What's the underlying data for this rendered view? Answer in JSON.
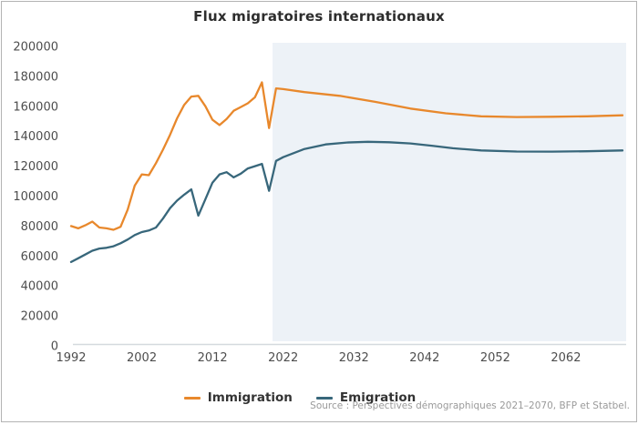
{
  "chart_data": {
    "type": "line",
    "title": "Flux migratoires internationaux",
    "xlabel": "",
    "ylabel": "",
    "xlim": [
      1992,
      2070
    ],
    "ylim": [
      0,
      200000
    ],
    "x_ticks": [
      1992,
      2002,
      2012,
      2022,
      2032,
      2042,
      2052,
      2062
    ],
    "y_ticks": [
      0,
      20000,
      40000,
      60000,
      80000,
      100000,
      120000,
      140000,
      160000,
      180000,
      200000
    ],
    "grid": false,
    "legend_position": "bottom-center",
    "projection_shading_start_year": 2020.5,
    "projection_fill": "#edf2f7",
    "axis_line_color": "#d5dade",
    "series": [
      {
        "name": "Immigration",
        "color": "#e8882c",
        "points": [
          [
            1992,
            80000
          ],
          [
            1993,
            78500
          ],
          [
            1994,
            80500
          ],
          [
            1995,
            83000
          ],
          [
            1996,
            79000
          ],
          [
            1997,
            78500
          ],
          [
            1998,
            77500
          ],
          [
            1999,
            79500
          ],
          [
            2000,
            91000
          ],
          [
            2001,
            107000
          ],
          [
            2002,
            114500
          ],
          [
            2003,
            114000
          ],
          [
            2004,
            122000
          ],
          [
            2005,
            131000
          ],
          [
            2006,
            141000
          ],
          [
            2007,
            152000
          ],
          [
            2008,
            161000
          ],
          [
            2009,
            166500
          ],
          [
            2010,
            167000
          ],
          [
            2011,
            160000
          ],
          [
            2012,
            151000
          ],
          [
            2013,
            147500
          ],
          [
            2014,
            151500
          ],
          [
            2015,
            157000
          ],
          [
            2016,
            159500
          ],
          [
            2017,
            162000
          ],
          [
            2018,
            166000
          ],
          [
            2019,
            176000
          ],
          [
            2020,
            145500
          ],
          [
            2021,
            172000
          ],
          [
            2022,
            171500
          ],
          [
            2025,
            169500
          ],
          [
            2030,
            167000
          ],
          [
            2035,
            163000
          ],
          [
            2040,
            158500
          ],
          [
            2045,
            155300
          ],
          [
            2050,
            153300
          ],
          [
            2055,
            152800
          ],
          [
            2060,
            153000
          ],
          [
            2065,
            153300
          ],
          [
            2070,
            154000
          ]
        ]
      },
      {
        "name": "Emigration",
        "color": "#38677b",
        "points": [
          [
            1992,
            56000
          ],
          [
            1993,
            58500
          ],
          [
            1994,
            61000
          ],
          [
            1995,
            63500
          ],
          [
            1996,
            65000
          ],
          [
            1997,
            65500
          ],
          [
            1998,
            66500
          ],
          [
            1999,
            68500
          ],
          [
            2000,
            71000
          ],
          [
            2001,
            74000
          ],
          [
            2002,
            76000
          ],
          [
            2003,
            77000
          ],
          [
            2004,
            79000
          ],
          [
            2005,
            85000
          ],
          [
            2006,
            92000
          ],
          [
            2007,
            97000
          ],
          [
            2008,
            101000
          ],
          [
            2009,
            104500
          ],
          [
            2010,
            87000
          ],
          [
            2011,
            98000
          ],
          [
            2012,
            109000
          ],
          [
            2013,
            114500
          ],
          [
            2014,
            116000
          ],
          [
            2015,
            112500
          ],
          [
            2016,
            115000
          ],
          [
            2017,
            118500
          ],
          [
            2018,
            120000
          ],
          [
            2019,
            121500
          ],
          [
            2020,
            103500
          ],
          [
            2021,
            123500
          ],
          [
            2022,
            126000
          ],
          [
            2025,
            131500
          ],
          [
            2028,
            134500
          ],
          [
            2031,
            135800
          ],
          [
            2034,
            136300
          ],
          [
            2037,
            136000
          ],
          [
            2040,
            135200
          ],
          [
            2043,
            133700
          ],
          [
            2046,
            132000
          ],
          [
            2050,
            130500
          ],
          [
            2055,
            129800
          ],
          [
            2060,
            129700
          ],
          [
            2065,
            130000
          ],
          [
            2070,
            130500
          ]
        ]
      }
    ]
  },
  "footer": {
    "source": "Source : Perspectives démographiques 2021–2070, BFP et Statbel."
  }
}
